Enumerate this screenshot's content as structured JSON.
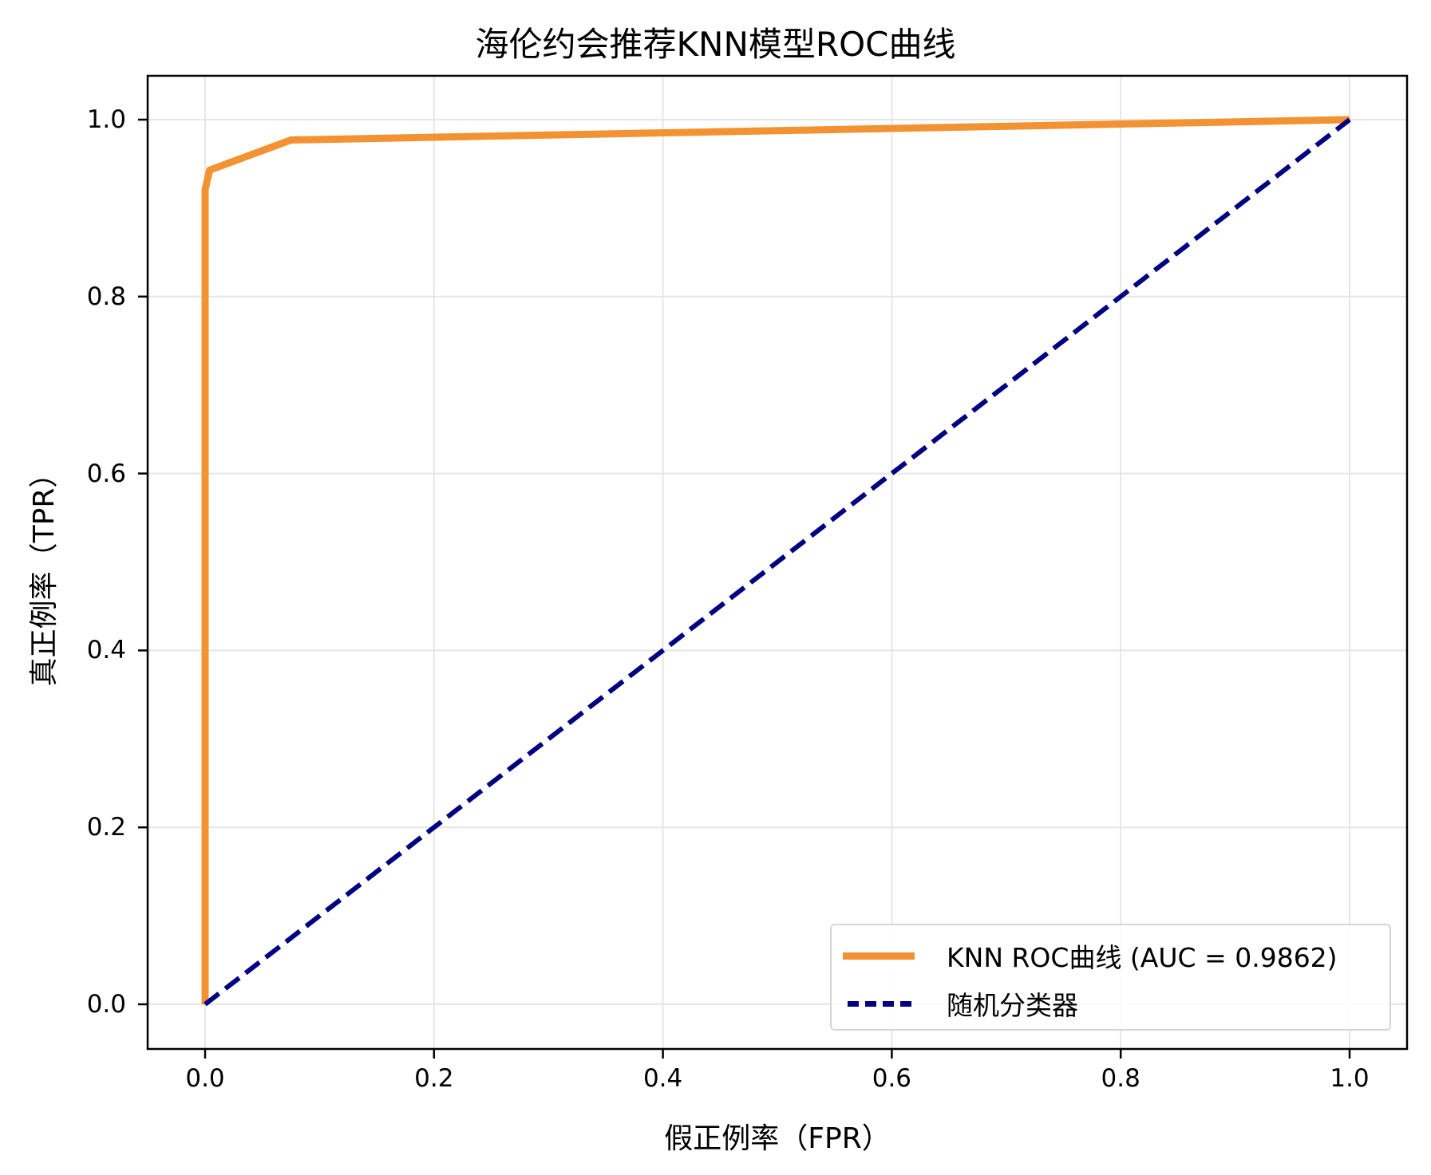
{
  "chart_data": {
    "type": "line",
    "title": "海伦约会推荐KNN模型ROC曲线",
    "xlabel": "假正例率（FPR）",
    "ylabel": "真正例率（TPR）",
    "xlim": [
      -0.05,
      1.05
    ],
    "ylim": [
      -0.05,
      1.05
    ],
    "grid": true,
    "legend_position": "lower right",
    "xticks": [
      "0.0",
      "0.2",
      "0.4",
      "0.6",
      "0.8",
      "1.0"
    ],
    "yticks": [
      "0.0",
      "0.2",
      "0.4",
      "0.6",
      "0.8",
      "1.0"
    ],
    "series": [
      {
        "name": "KNN ROC曲线 (AUC = 0.9862)",
        "style": "solid",
        "color": "#F39232",
        "x": [
          0.0,
          0.0,
          0.004,
          0.075,
          1.0
        ],
        "y": [
          0.0,
          0.921,
          0.943,
          0.977,
          1.0
        ]
      },
      {
        "name": "随机分类器",
        "style": "dashed",
        "color": "#000080",
        "x": [
          0.0,
          1.0
        ],
        "y": [
          0.0,
          1.0
        ]
      }
    ],
    "auc": 0.9862
  },
  "legend": {
    "items": [
      {
        "label": "KNN ROC曲线 (AUC = 0.9862)"
      },
      {
        "label": "随机分类器"
      }
    ]
  }
}
